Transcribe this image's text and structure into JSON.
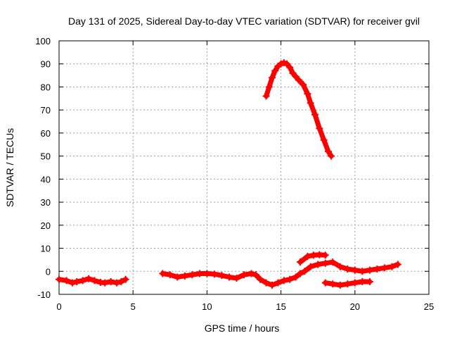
{
  "chart_data": {
    "type": "line",
    "title": "Day 131 of 2025, Sidereal Day-to-day VTEC variation (SDTVAR) for receiver gvil",
    "xlabel": "GPS time / hours",
    "ylabel": "SDTVAR / TECUs",
    "xlim": [
      0,
      25
    ],
    "ylim": [
      -10,
      100
    ],
    "xticks": [
      0,
      5,
      10,
      15,
      20,
      25
    ],
    "yticks": [
      -10,
      0,
      10,
      20,
      30,
      40,
      50,
      60,
      70,
      80,
      90,
      100
    ],
    "grid": true,
    "marker": "plus",
    "color": "#ff0000",
    "series": [
      {
        "x": [
          0.0,
          0.5,
          0.9,
          1.2,
          1.6,
          2.0,
          2.4,
          2.8,
          3.1,
          3.5,
          3.9,
          4.2,
          4.5
        ],
        "y": [
          -3.5,
          -4.0,
          -5.0,
          -4.5,
          -4.0,
          -3.2,
          -4.0,
          -4.8,
          -5.0,
          -4.5,
          -5.0,
          -4.5,
          -3.5
        ]
      },
      {
        "x": [
          7.0,
          7.5,
          8.0,
          8.5,
          9.0,
          9.5,
          10.0,
          10.5,
          11.0,
          11.5,
          12.0,
          12.5,
          13.0,
          13.3,
          13.6,
          14.0,
          14.4,
          14.8,
          15.2,
          15.6,
          16.0,
          16.3,
          16.6,
          17.0,
          17.5,
          18.0,
          18.5,
          19.0,
          19.5,
          20.0,
          20.5,
          21.0,
          21.5,
          22.0,
          22.5,
          22.9
        ],
        "y": [
          -1.0,
          -1.5,
          -2.5,
          -2.0,
          -1.5,
          -1.0,
          -1.0,
          -1.2,
          -1.8,
          -2.5,
          -3.0,
          -1.5,
          -1.0,
          -1.5,
          -3.5,
          -5.0,
          -6.0,
          -5.0,
          -4.0,
          -3.5,
          -2.5,
          -1.0,
          0.0,
          2.0,
          3.0,
          3.5,
          4.0,
          2.0,
          1.0,
          0.5,
          0.0,
          0.5,
          1.0,
          1.5,
          2.0,
          3.0
        ]
      },
      {
        "x": [
          16.3,
          16.8,
          17.2,
          17.6,
          18.0
        ],
        "y": [
          4.0,
          6.5,
          7.0,
          7.2,
          7.0
        ]
      },
      {
        "x": [
          18.0,
          18.5,
          19.0,
          19.5,
          20.0,
          20.5,
          21.0
        ],
        "y": [
          -5.0,
          -5.5,
          -6.0,
          -5.5,
          -5.0,
          -4.5,
          -4.5
        ]
      },
      {
        "x": [
          14.0,
          14.2,
          14.4,
          14.6,
          14.8,
          15.0,
          15.2,
          15.4,
          15.6,
          15.8,
          16.0,
          16.2,
          16.5,
          16.8,
          17.0,
          17.3,
          17.6,
          17.9,
          18.2,
          18.4
        ],
        "y": [
          76.0,
          80.0,
          84.0,
          87.0,
          89.0,
          90.0,
          90.5,
          90.0,
          88.5,
          86.0,
          84.5,
          83.0,
          81.0,
          77.0,
          73.0,
          68.0,
          62.0,
          57.0,
          52.0,
          50.0
        ]
      }
    ]
  }
}
